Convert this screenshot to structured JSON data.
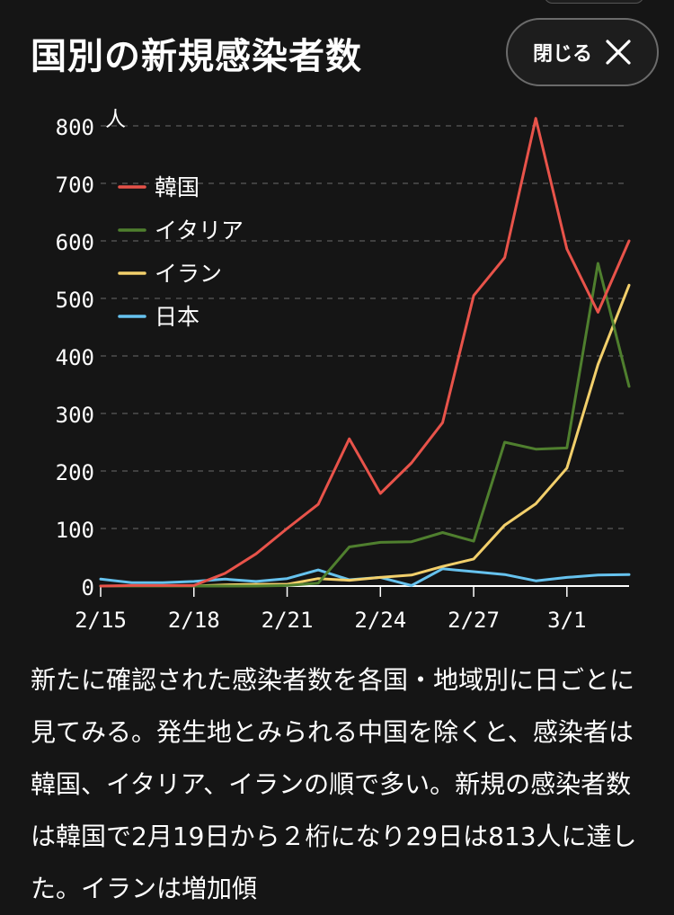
{
  "header": {
    "title": "国別の新規感染者数",
    "close_label": "閉じる"
  },
  "description": "新たに確認された感染者数を各国・地域別に日ごとに見てみる。発生地とみられる中国を除くと、感染者は韓国、イタリア、イランの順で多い。新規の感染者数は韓国で2月19日から２桁になり29日は813人に達した。イランは増加傾",
  "chart_data": {
    "type": "line",
    "x": [
      "2/15",
      "2/16",
      "2/17",
      "2/18",
      "2/19",
      "2/20",
      "2/21",
      "2/22",
      "2/23",
      "2/24",
      "2/25",
      "2/26",
      "2/27",
      "2/28",
      "2/29",
      "3/1",
      "3/2",
      "3/3"
    ],
    "x_tick_labels": [
      "2/15",
      "2/18",
      "2/21",
      "2/24",
      "2/27",
      "3/1"
    ],
    "y_tick_labels": [
      "0",
      "100",
      "200",
      "300",
      "400",
      "500",
      "600",
      "700",
      "800"
    ],
    "ylim": [
      0,
      800
    ],
    "y_unit": "人",
    "grid": true,
    "legend_position": "top-left",
    "series": [
      {
        "name": "韓国",
        "color": "#e8534a",
        "values": [
          0,
          1,
          1,
          1,
          22,
          56,
          100,
          142,
          256,
          161,
          214,
          284,
          505,
          571,
          813,
          586,
          476,
          600
        ]
      },
      {
        "name": "イタリア",
        "color": "#4f7f2e",
        "values": [
          0,
          0,
          0,
          0,
          0,
          0,
          1,
          5,
          68,
          76,
          77,
          93,
          78,
          250,
          238,
          240,
          561,
          347
        ]
      },
      {
        "name": "イラン",
        "color": "#f2cf6b",
        "values": [
          0,
          0,
          0,
          0,
          2,
          3,
          3,
          13,
          10,
          15,
          19,
          34,
          47,
          106,
          143,
          205,
          385,
          523
        ]
      },
      {
        "name": "日本",
        "color": "#66c2ee",
        "values": [
          12,
          6,
          6,
          8,
          12,
          8,
          13,
          28,
          11,
          15,
          1,
          30,
          25,
          20,
          9,
          15,
          19,
          20
        ]
      }
    ]
  }
}
